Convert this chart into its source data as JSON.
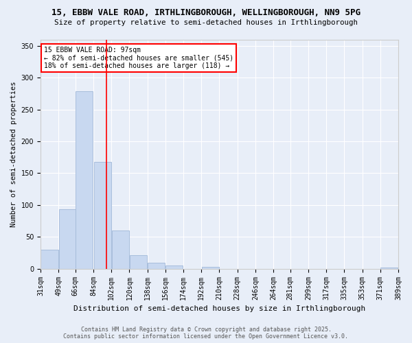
{
  "title1": "15, EBBW VALE ROAD, IRTHLINGBOROUGH, WELLINGBOROUGH, NN9 5PG",
  "title2": "Size of property relative to semi-detached houses in Irthlingborough",
  "xlabel": "Distribution of semi-detached houses by size in Irthlingborough",
  "ylabel": "Number of semi-detached properties",
  "bins": [
    31,
    49,
    66,
    84,
    102,
    120,
    138,
    156,
    174,
    192,
    210,
    228,
    246,
    264,
    281,
    299,
    317,
    335,
    353,
    371,
    389
  ],
  "bin_labels": [
    "31sqm",
    "49sqm",
    "66sqm",
    "84sqm",
    "102sqm",
    "120sqm",
    "138sqm",
    "156sqm",
    "174sqm",
    "192sqm",
    "210sqm",
    "228sqm",
    "246sqm",
    "264sqm",
    "281sqm",
    "299sqm",
    "317sqm",
    "335sqm",
    "353sqm",
    "371sqm",
    "389sqm"
  ],
  "values": [
    30,
    93,
    279,
    168,
    60,
    21,
    9,
    5,
    0,
    3,
    0,
    0,
    0,
    0,
    0,
    0,
    0,
    0,
    0,
    2
  ],
  "bar_color": "#c8d8f0",
  "bar_edge_color": "#a0b8d8",
  "vline_x": 97,
  "vline_color": "red",
  "annotation_line1": "15 EBBW VALE ROAD: 97sqm",
  "annotation_line2": "← 82% of semi-detached houses are smaller (545)",
  "annotation_line3": "18% of semi-detached houses are larger (118) →",
  "annotation_box_color": "white",
  "annotation_box_edge": "red",
  "ylim": [
    0,
    360
  ],
  "background_color": "#e8eef8",
  "footer1": "Contains HM Land Registry data © Crown copyright and database right 2025.",
  "footer2": "Contains public sector information licensed under the Open Government Licence v3.0."
}
